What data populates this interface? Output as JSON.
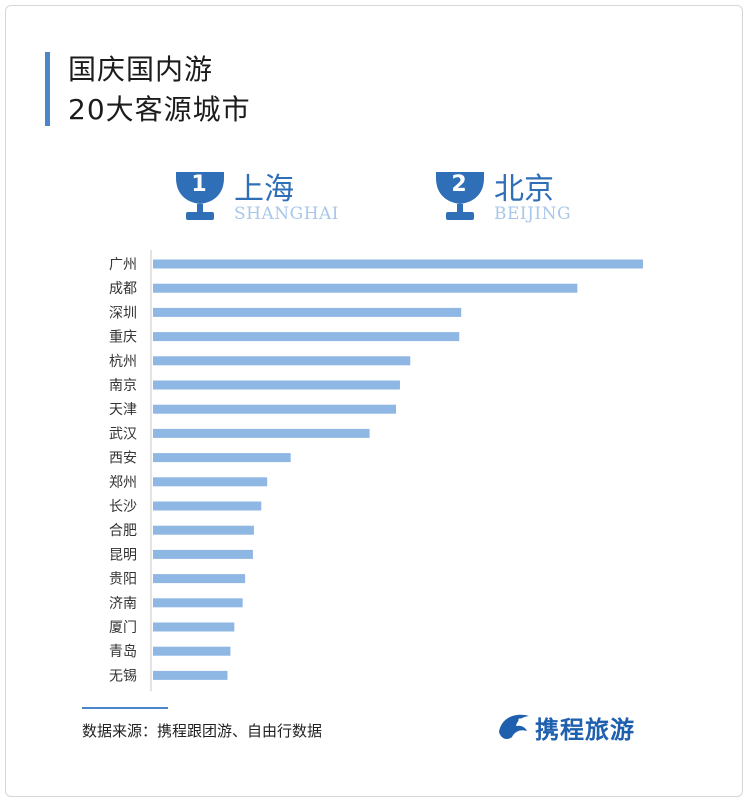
{
  "title": {
    "line1": "国庆国内游",
    "line2": "20大客源城市"
  },
  "top_ranks": [
    {
      "rank": "1",
      "city": "上海",
      "city_en": "SHANGHAI"
    },
    {
      "rank": "2",
      "city": "北京",
      "city_en": "BEIJING"
    }
  ],
  "chart_data": {
    "type": "bar",
    "orientation": "horizontal",
    "title": "",
    "xlabel": "",
    "ylabel": "",
    "categories": [
      "广州",
      "成都",
      "深圳",
      "重庆",
      "杭州",
      "南京",
      "天津",
      "武汉",
      "西安",
      "郑州",
      "长沙",
      "合肥",
      "昆明",
      "贵阳",
      "济南",
      "厦门",
      "青岛",
      "无锡"
    ],
    "values": [
      100,
      86.6,
      62.9,
      62.5,
      52.5,
      50.4,
      49.6,
      44.2,
      28.1,
      23.3,
      22.1,
      20.6,
      20.4,
      18.8,
      18.3,
      16.6,
      15.8,
      15.2
    ],
    "xlim": [
      0,
      100
    ],
    "grid": false,
    "legend": "none",
    "bar_color": "#8fb7e4"
  },
  "source": "数据来源：携程跟团游、自由行数据",
  "logo": {
    "text": "携程旅游"
  },
  "colors": {
    "accent": "#4a86c8",
    "rank_text": "#2f6fb7",
    "rank_en": "#a9c7ea",
    "bar": "#8fb7e4"
  }
}
